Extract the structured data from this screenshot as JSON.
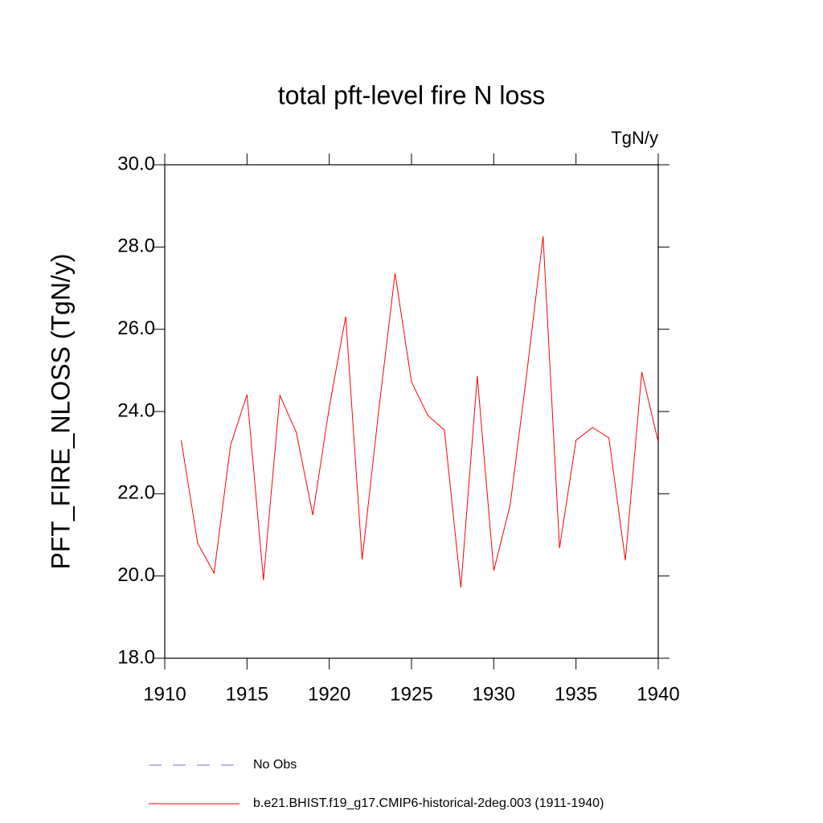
{
  "chart_data": {
    "type": "line",
    "title": "total pft-level fire N loss",
    "units": "TgN/y",
    "y_label": "PFT_FIRE_NLOSS  (TgN/y)",
    "x": [
      1911,
      1912,
      1913,
      1914,
      1915,
      1916,
      1917,
      1918,
      1919,
      1920,
      1921,
      1922,
      1923,
      1924,
      1925,
      1926,
      1927,
      1928,
      1929,
      1930,
      1931,
      1932,
      1933,
      1934,
      1935,
      1936,
      1937,
      1938,
      1939,
      1940
    ],
    "series": [
      {
        "name": "b.e21.BHIST.f19_g17.CMIP6-historical-2deg.003 (1911-1940)",
        "color": "#ff0000",
        "values": [
          23.3,
          20.8,
          20.07,
          23.18,
          24.41,
          19.9,
          24.39,
          23.49,
          21.48,
          24.1,
          26.31,
          20.4,
          24.0,
          27.36,
          24.72,
          23.9,
          23.55,
          19.72,
          24.86,
          20.13,
          21.73,
          24.9,
          28.26,
          20.68,
          23.3,
          23.61,
          23.36,
          20.38,
          24.96,
          23.26
        ]
      }
    ],
    "legend_entries": [
      {
        "label": "No Obs",
        "color": "#7070c8",
        "dashed": true
      }
    ],
    "xlim": [
      1910,
      1940
    ],
    "xticks": [
      1910,
      1915,
      1920,
      1925,
      1930,
      1935,
      1940
    ],
    "ylim": [
      18,
      30
    ],
    "yticks": [
      {
        "value": 18,
        "label": "18.0"
      },
      {
        "value": 20,
        "label": "20.0"
      },
      {
        "value": 22,
        "label": "22.0"
      },
      {
        "value": 24,
        "label": "24.0"
      },
      {
        "value": 26,
        "label": "26.0"
      },
      {
        "value": 28,
        "label": "28.0"
      },
      {
        "value": 30,
        "label": "30.0"
      }
    ]
  }
}
